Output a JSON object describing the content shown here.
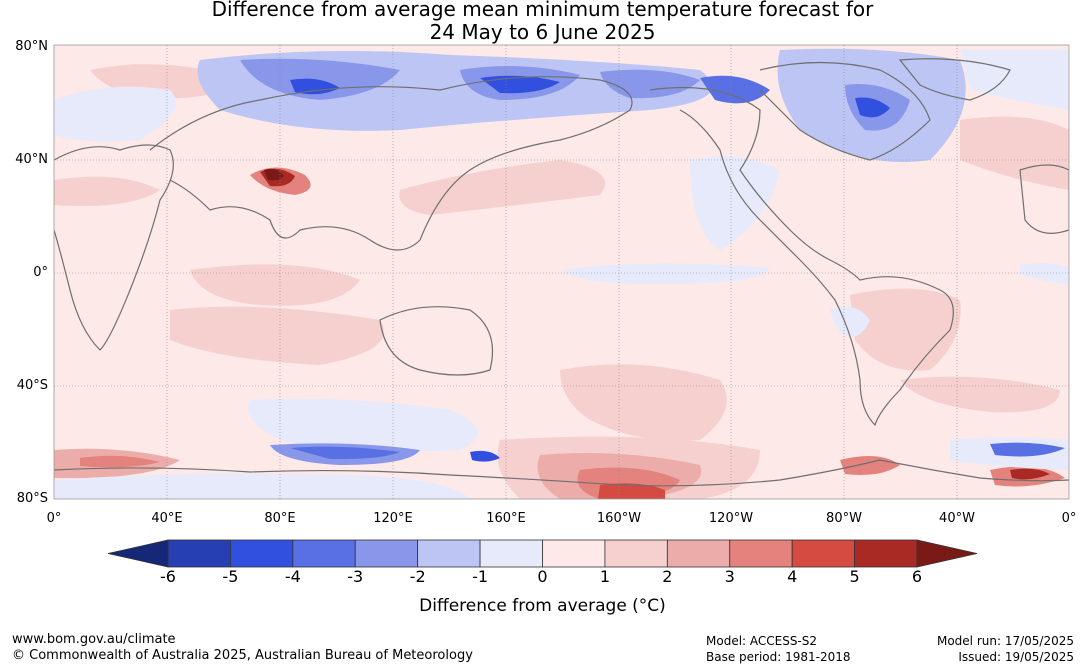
{
  "title_line1": "Difference from average mean minimum temperature forecast for",
  "title_line2": "24 May to 6 June 2025",
  "lat_labels": [
    "80°N",
    "40°N",
    "0°",
    "40°S",
    "80°S"
  ],
  "lon_labels": [
    "0°",
    "40°E",
    "80°E",
    "120°E",
    "160°E",
    "160°W",
    "120°W",
    "80°W",
    "40°W",
    "0°"
  ],
  "colorbar": {
    "ticks": [
      "-6",
      "-5",
      "-4",
      "-3",
      "-2",
      "-1",
      "0",
      "1",
      "2",
      "3",
      "4",
      "5",
      "6"
    ],
    "colors": [
      "#172777",
      "#2640b4",
      "#3150e0",
      "#5870e4",
      "#8897ea",
      "#bcc5f3",
      "#e7eafb",
      "#fce9e8",
      "#f5d0ce",
      "#ecadaa",
      "#e4827d",
      "#d54a41",
      "#a92a24",
      "#7a1a17"
    ],
    "title": "Difference from average (°C)"
  },
  "footer": {
    "url": "www.bom.gov.au/climate",
    "copyright": "© Commonwealth of Australia 2025, Australian Bureau of Meteorology",
    "model": "Model: ACCESS-S2",
    "base_period": "Base period: 1981-2018",
    "model_run": "Model run: 17/05/2025",
    "issued": "Issued: 19/05/2025"
  }
}
